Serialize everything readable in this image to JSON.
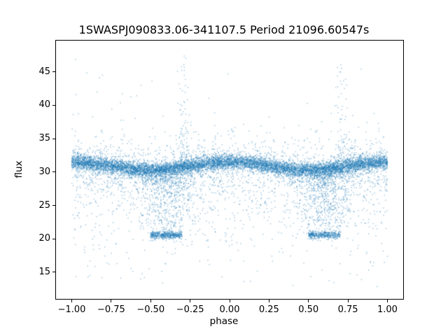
{
  "chart_data": {
    "type": "scatter",
    "title": "1SWASPJ090833.06-341107.5 Period 21096.60547s",
    "xlabel": "phase",
    "ylabel": "flux",
    "xlim": [
      -1.1,
      1.1
    ],
    "ylim": [
      11.0,
      49.7
    ],
    "xticks": [
      -1.0,
      -0.75,
      -0.5,
      -0.25,
      0.0,
      0.25,
      0.5,
      0.75,
      1.0
    ],
    "xtick_labels": [
      "−1.00",
      "−0.75",
      "−0.50",
      "−0.25",
      "0.00",
      "0.25",
      "0.50",
      "0.75",
      "1.00"
    ],
    "yticks": [
      15,
      20,
      25,
      30,
      35,
      40,
      45
    ],
    "ytick_labels": [
      "15",
      "20",
      "25",
      "30",
      "35",
      "40",
      "45"
    ],
    "grid": false,
    "legend": null,
    "marker": {
      "color": "#1f77b4",
      "alpha": 0.4,
      "size": 1.5
    },
    "seed": 90833,
    "description": "Phase-folded light curve of an eclipsing binary: dense out-of-eclipse band near flux 31 across phase -1 to 1, eclipse minima clumps near flux 20.5 centered at phases -0.4 and +0.6, diffuse ingress/egress scatter between flux 21 and 30 around the eclipses, upward outlier plumes near phases -0.29 and +0.71 reaching flux ~47.5, and sparse noise points down to flux ~12.6.",
    "components": [
      {
        "type": "band",
        "n": 9500,
        "x_min": -1.0,
        "x_max": 1.0,
        "base": 30.9,
        "amp": 0.6,
        "x0": 0.0,
        "sigma": 0.55,
        "wide_frac": 0.12,
        "wide_sigma": 1.6
      },
      {
        "type": "smear",
        "n": 1300,
        "centers": [
          -0.4,
          0.6
        ],
        "x_sigma": 0.09,
        "y_top": 30.0,
        "depth": 9.3,
        "power": 1.6,
        "y_sigma": 0.9
      },
      {
        "type": "clump",
        "n": 900,
        "centers": [
          -0.4,
          0.6
        ],
        "half_width": 0.1,
        "y_mean": 20.55,
        "y_sigma": 0.28
      },
      {
        "type": "plume",
        "n": 130,
        "centers": [
          -0.29,
          0.71
        ],
        "x_sigma": 0.018,
        "y_min": 32.5,
        "y_max": 47.5,
        "power": 1.8
      },
      {
        "type": "tail_below",
        "n": 1100,
        "x_min": -1.0,
        "x_max": 1.0,
        "y_start": 30.0,
        "scale": 4.5,
        "y_floor": 12.6
      },
      {
        "type": "tail_above",
        "n": 260,
        "x_min": -1.0,
        "x_max": 1.0,
        "y_start": 32.2,
        "scale": 1.8,
        "y_ceil": 40.0
      },
      {
        "type": "uniform",
        "n": 90,
        "x_min": -1.0,
        "x_max": 1.0,
        "y_min": 13.0,
        "y_max": 47.0
      }
    ]
  }
}
